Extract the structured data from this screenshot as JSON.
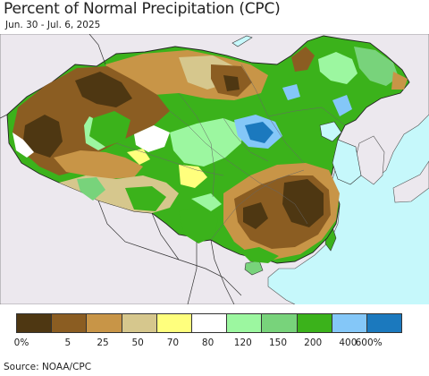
{
  "header": {
    "title": "Percent of Normal Precipitation (CPC)",
    "date_range": "Jun. 30 - Jul. 6, 2025"
  },
  "map": {
    "ocean_color": "#c6f8fb",
    "land_color": "#ece8ee",
    "border_color": "#333333"
  },
  "legend": {
    "colors": [
      "#4e3712",
      "#8b5d22",
      "#c89547",
      "#d6c78d",
      "#ffff7d",
      "#ffffff",
      "#9cf7a0",
      "#78d37b",
      "#3bb21b",
      "#84c7f8",
      "#1b79be"
    ],
    "tick_labels": [
      "0%",
      "5",
      "25",
      "50",
      "70",
      "80",
      "120",
      "150",
      "200",
      "400",
      "600%"
    ]
  },
  "footer": {
    "source": "Source: NOAA/CPC"
  }
}
